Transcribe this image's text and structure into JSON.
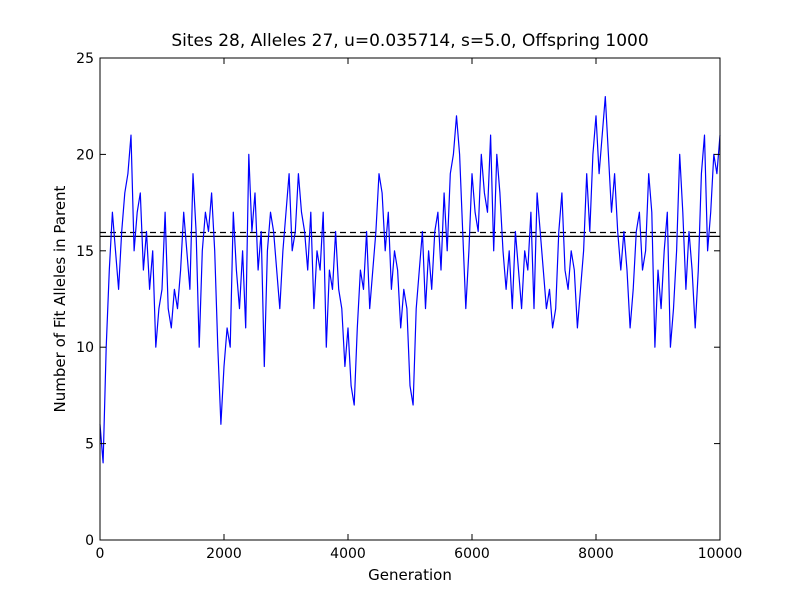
{
  "chart_data": {
    "type": "line",
    "title": "Sites 28, Alleles 27, u=0.035714, s=5.0, Offspring 1000",
    "xlabel": "Generation",
    "ylabel": "Number of Fit Alleles in Parent",
    "xlim": [
      0,
      10000
    ],
    "ylim": [
      0,
      25
    ],
    "xticks": [
      0,
      2000,
      4000,
      6000,
      8000,
      10000
    ],
    "yticks": [
      0,
      5,
      10,
      15,
      20,
      25
    ],
    "grid": false,
    "hlines": [
      {
        "value": 15.75,
        "color": "#000000",
        "style": "solid"
      },
      {
        "value": 15.95,
        "color": "#000000",
        "style": "dashed"
      }
    ],
    "series": [
      {
        "color": "#0000ff",
        "x": [
          0,
          50,
          100,
          150,
          200,
          250,
          300,
          350,
          400,
          450,
          500,
          550,
          600,
          650,
          700,
          750,
          800,
          850,
          900,
          950,
          1000,
          1050,
          1100,
          1150,
          1200,
          1250,
          1300,
          1350,
          1400,
          1450,
          1500,
          1550,
          1600,
          1650,
          1700,
          1750,
          1800,
          1850,
          1900,
          1950,
          2000,
          2050,
          2100,
          2150,
          2200,
          2250,
          2300,
          2350,
          2400,
          2450,
          2500,
          2550,
          2600,
          2650,
          2700,
          2750,
          2800,
          2850,
          2900,
          2950,
          3000,
          3050,
          3100,
          3150,
          3200,
          3250,
          3300,
          3350,
          3400,
          3450,
          3500,
          3550,
          3600,
          3650,
          3700,
          3750,
          3800,
          3850,
          3900,
          3950,
          4000,
          4050,
          4100,
          4150,
          4200,
          4250,
          4300,
          4350,
          4400,
          4450,
          4500,
          4550,
          4600,
          4650,
          4700,
          4750,
          4800,
          4850,
          4900,
          4950,
          5000,
          5050,
          5100,
          5150,
          5200,
          5250,
          5300,
          5350,
          5400,
          5450,
          5500,
          5550,
          5600,
          5650,
          5700,
          5750,
          5800,
          5850,
          5900,
          5950,
          6000,
          6050,
          6100,
          6150,
          6200,
          6250,
          6300,
          6350,
          6400,
          6450,
          6500,
          6550,
          6600,
          6650,
          6700,
          6750,
          6800,
          6850,
          6900,
          6950,
          7000,
          7050,
          7100,
          7150,
          7200,
          7250,
          7300,
          7350,
          7400,
          7450,
          7500,
          7550,
          7600,
          7650,
          7700,
          7750,
          7800,
          7850,
          7900,
          7950,
          8000,
          8050,
          8100,
          8150,
          8200,
          8250,
          8300,
          8350,
          8400,
          8450,
          8500,
          8550,
          8600,
          8650,
          8700,
          8750,
          8800,
          8850,
          8900,
          8950,
          9000,
          9050,
          9100,
          9150,
          9200,
          9250,
          9300,
          9350,
          9400,
          9450,
          9500,
          9550,
          9600,
          9650,
          9700,
          9750,
          9800,
          9850,
          9900,
          9950,
          10000
        ],
        "values": [
          6,
          4,
          10,
          14,
          17,
          15,
          13,
          16,
          18,
          19,
          21,
          15,
          17,
          18,
          14,
          16,
          13,
          15,
          10,
          12,
          13,
          17,
          12,
          11,
          13,
          12,
          14,
          17,
          15,
          13,
          19,
          16,
          10,
          15,
          17,
          16,
          18,
          15,
          10,
          6,
          9,
          11,
          10,
          17,
          14,
          12,
          15,
          11,
          20,
          16,
          18,
          14,
          16,
          9,
          15,
          17,
          16,
          14,
          12,
          15,
          17,
          19,
          15,
          16,
          19,
          17,
          16,
          14,
          17,
          12,
          15,
          14,
          17,
          10,
          14,
          13,
          16,
          13,
          12,
          9,
          11,
          8,
          7,
          11,
          14,
          13,
          16,
          12,
          14,
          16,
          19,
          18,
          15,
          17,
          13,
          15,
          14,
          11,
          13,
          12,
          8,
          7,
          12,
          14,
          16,
          12,
          15,
          13,
          16,
          17,
          14,
          18,
          15,
          19,
          20,
          22,
          20,
          16,
          12,
          15,
          19,
          17,
          16,
          20,
          18,
          17,
          21,
          15,
          20,
          18,
          15,
          13,
          15,
          12,
          16,
          14,
          12,
          15,
          14,
          17,
          12,
          18,
          16,
          14,
          12,
          13,
          11,
          12,
          16,
          18,
          14,
          13,
          15,
          14,
          11,
          13,
          15,
          19,
          16,
          20,
          22,
          19,
          21,
          23,
          20,
          17,
          19,
          16,
          14,
          16,
          14,
          11,
          13,
          16,
          17,
          14,
          15,
          19,
          17,
          10,
          14,
          12,
          15,
          17,
          10,
          12,
          15,
          20,
          17,
          13,
          16,
          14,
          11,
          14,
          19,
          21,
          15,
          17,
          20,
          19,
          21
        ]
      }
    ]
  }
}
